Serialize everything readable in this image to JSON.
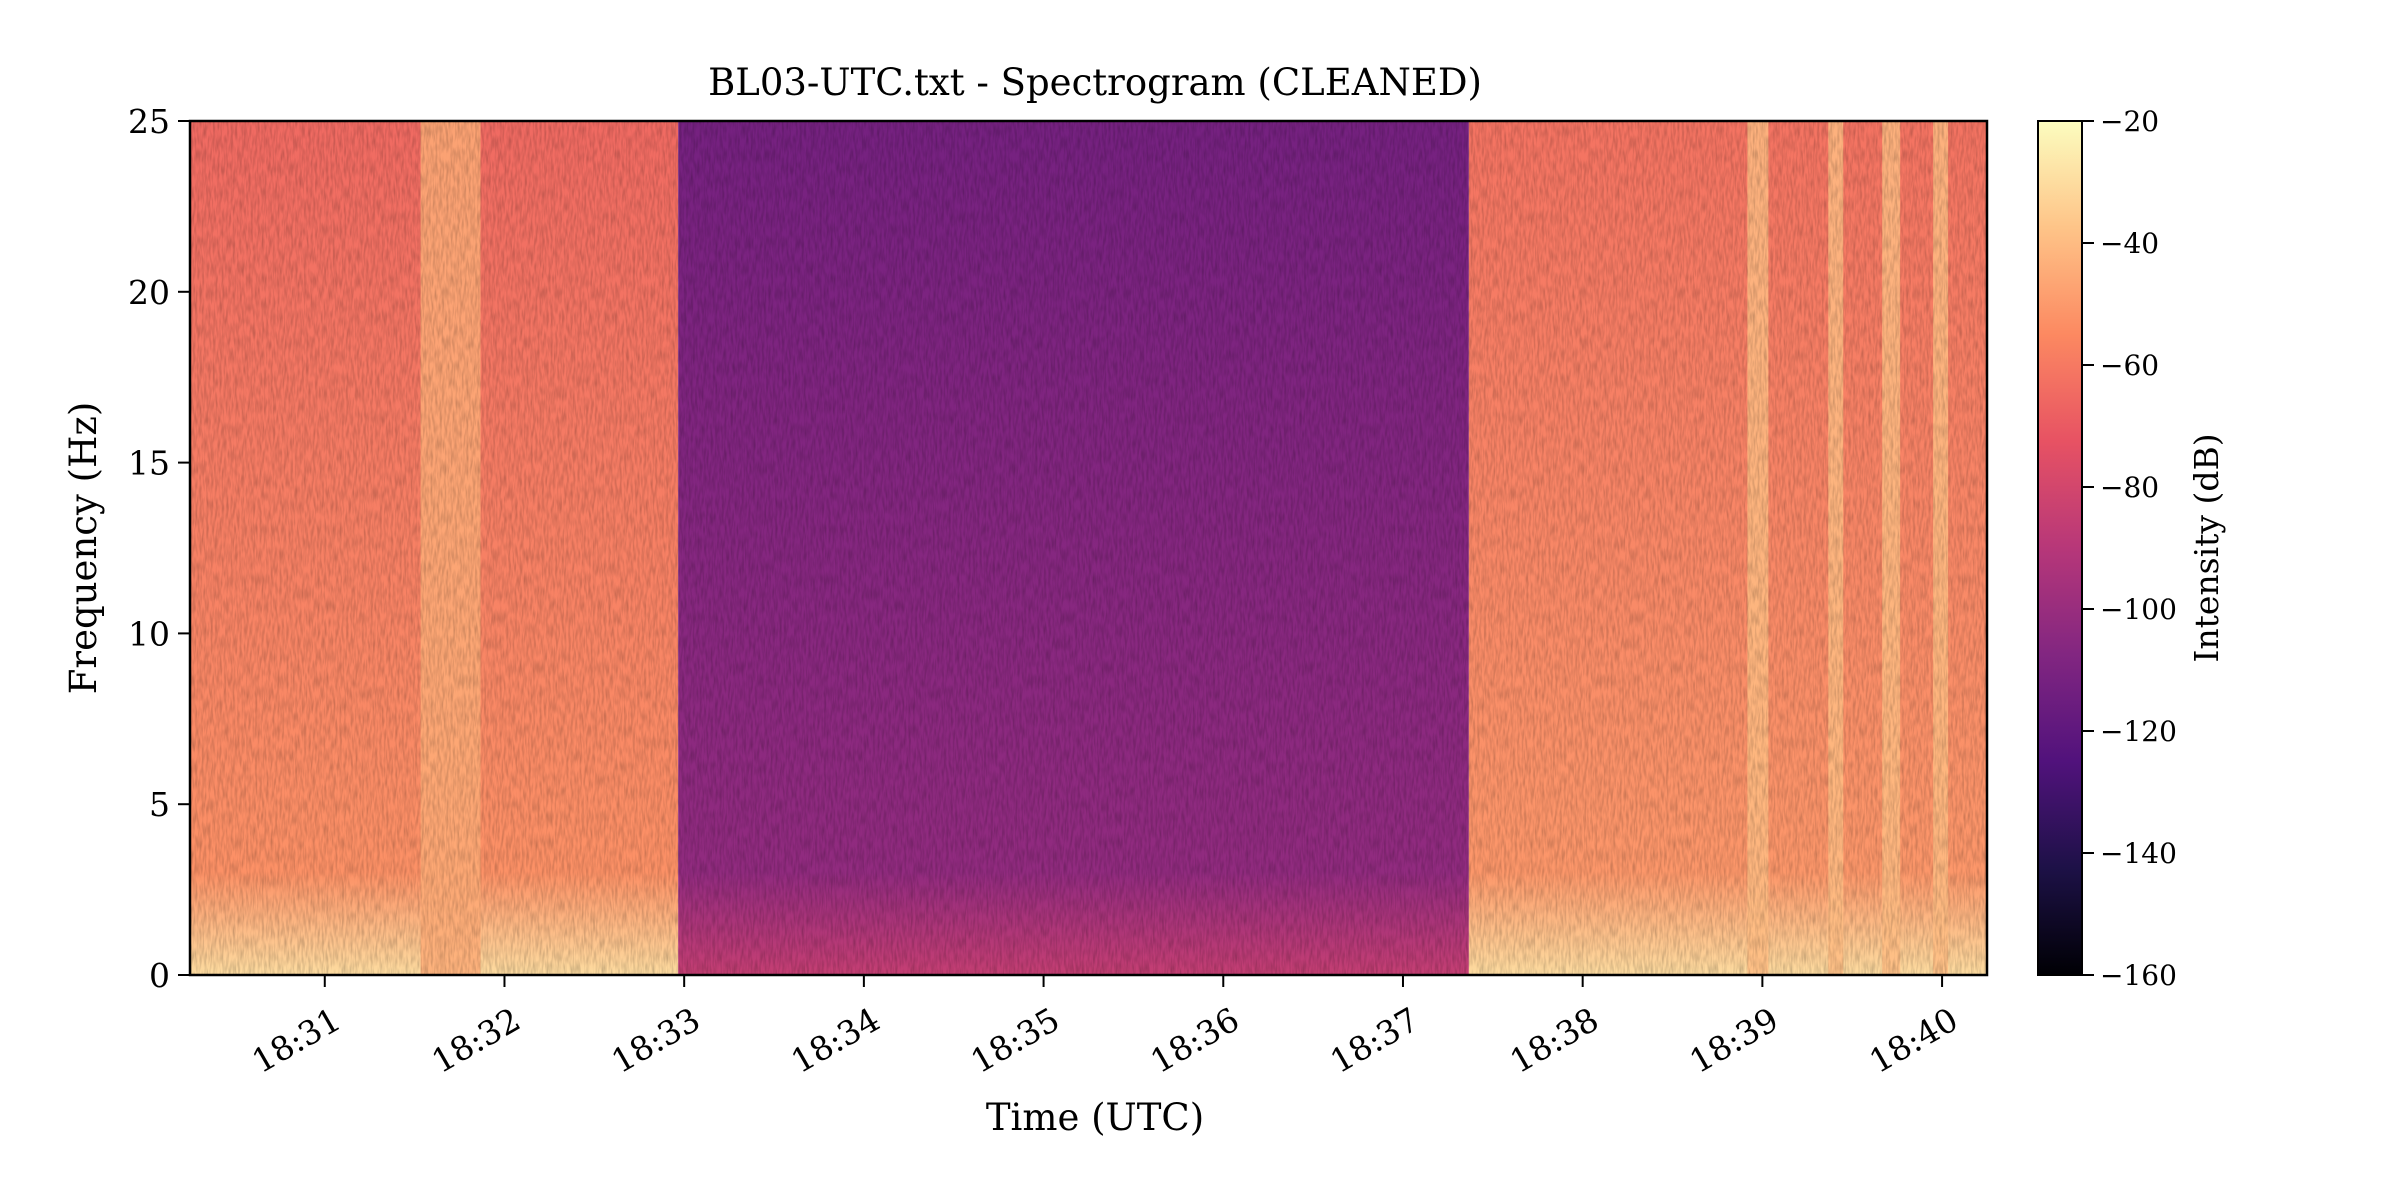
{
  "chart_data": {
    "type": "heatmap",
    "title": "BL03-UTC.txt - Spectrogram (CLEANED)",
    "xlabel": "Time (UTC)",
    "ylabel": "Frequency (Hz)",
    "colorbar_label": "Intensity (dB)",
    "colormap": "magma",
    "x_time_range": [
      "18:30:15",
      "18:40:15"
    ],
    "xticks": [
      "18:31",
      "18:32",
      "18:33",
      "18:34",
      "18:35",
      "18:36",
      "18:37",
      "18:38",
      "18:39",
      "18:40"
    ],
    "ylim": [
      0,
      25
    ],
    "yticks": [
      0,
      5,
      10,
      15,
      20,
      25
    ],
    "clim": [
      -160,
      -20
    ],
    "colorbar_ticks": [
      -20,
      -40,
      -60,
      -80,
      -100,
      -120,
      -140,
      -160
    ],
    "colorbar_tick_labels": [
      "−20",
      "−40",
      "−60",
      "−80",
      "−100",
      "−120",
      "−140",
      "−160"
    ],
    "segments": [
      {
        "start": "18:30:15",
        "end": "18:32:58",
        "level_db": -65,
        "low_freq_db": -30
      },
      {
        "start": "18:32:58",
        "end": "18:37:22",
        "level_db": -112,
        "low_freq_db": -85
      },
      {
        "start": "18:37:22",
        "end": "18:40:15",
        "level_db": -62,
        "low_freq_db": -30
      }
    ],
    "bright_bands": [
      {
        "start": "18:31:32",
        "end": "18:31:52",
        "level_db": -45
      },
      {
        "start": "18:38:55",
        "end": "18:39:02",
        "level_db": -40
      },
      {
        "start": "18:39:22",
        "end": "18:39:27",
        "level_db": -40
      },
      {
        "start": "18:39:40",
        "end": "18:39:46",
        "level_db": -40
      },
      {
        "start": "18:39:57",
        "end": "18:40:02",
        "level_db": -40
      }
    ],
    "colors": {
      "stops": [
        "#000004",
        "#1d1147",
        "#51127c",
        "#822681",
        "#b73779",
        "#e75263",
        "#fc8961",
        "#fec488",
        "#fcfdbf"
      ]
    }
  }
}
